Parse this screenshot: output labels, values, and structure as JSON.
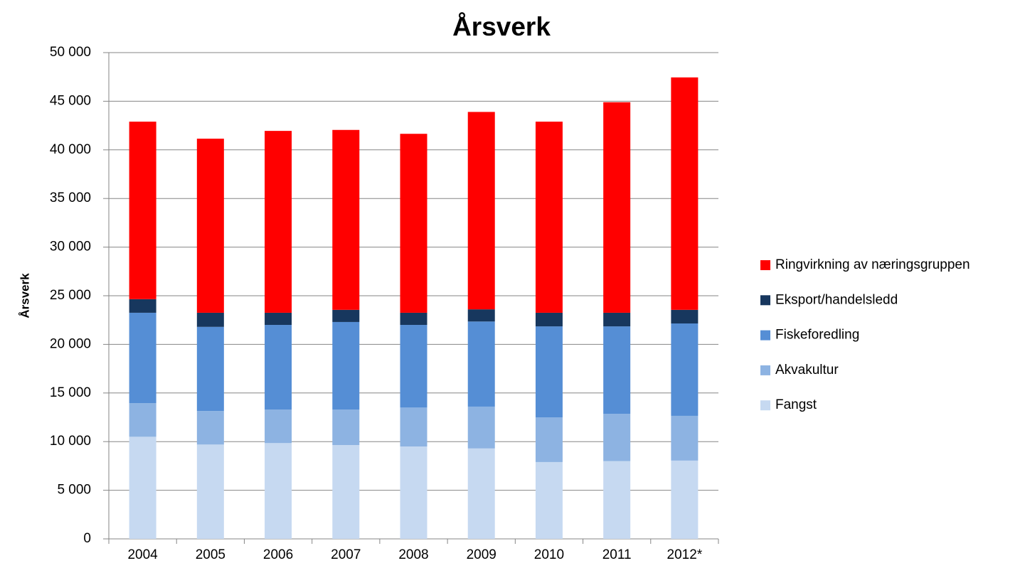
{
  "chart_data": {
    "type": "stacked_bar",
    "title": "Årsverk",
    "y_label": "Årsverk",
    "categories": [
      "2004",
      "2005",
      "2006",
      "2007",
      "2008",
      "2009",
      "2010",
      "2011",
      "2012*"
    ],
    "series": [
      {
        "name": "Fangst",
        "color": "#c6d9f1",
        "values": [
          10500,
          9700,
          9850,
          9650,
          9500,
          9300,
          7900,
          8000,
          8050
        ]
      },
      {
        "name": "Akvakultur",
        "color": "#8db3e2",
        "values": [
          3450,
          3450,
          3450,
          3650,
          4000,
          4300,
          4600,
          4850,
          4600
        ]
      },
      {
        "name": "Fiskeforedling",
        "color": "#558ed5",
        "values": [
          9300,
          8650,
          8700,
          9000,
          8500,
          8750,
          9350,
          9000,
          9500
        ]
      },
      {
        "name": "Eksport/handelsledd",
        "color": "#17375e",
        "values": [
          1400,
          1450,
          1250,
          1250,
          1250,
          1250,
          1400,
          1400,
          1400
        ]
      },
      {
        "name": "Ringvirkning av næringsgruppen",
        "color": "#ff0000",
        "values": [
          18250,
          17900,
          18700,
          18500,
          18400,
          20300,
          19650,
          21650,
          23900
        ]
      }
    ],
    "ylim": [
      0,
      50000
    ],
    "yticks": [
      0,
      {
        "value": 5000,
        "label": "5 000"
      },
      {
        "value": 10000,
        "label": "10 000"
      },
      {
        "value": 15000,
        "label": "15 000"
      },
      {
        "value": 20000,
        "label": "20 000"
      },
      {
        "value": 25000,
        "label": "25 000"
      },
      {
        "value": 30000,
        "label": "30 000"
      },
      {
        "value": 35000,
        "label": "35 000"
      },
      {
        "value": 40000,
        "label": "40 000"
      },
      {
        "value": 45000,
        "label": "45 000"
      },
      {
        "value": 50000,
        "label": "50 000"
      }
    ],
    "grid": true,
    "legend": "right"
  }
}
